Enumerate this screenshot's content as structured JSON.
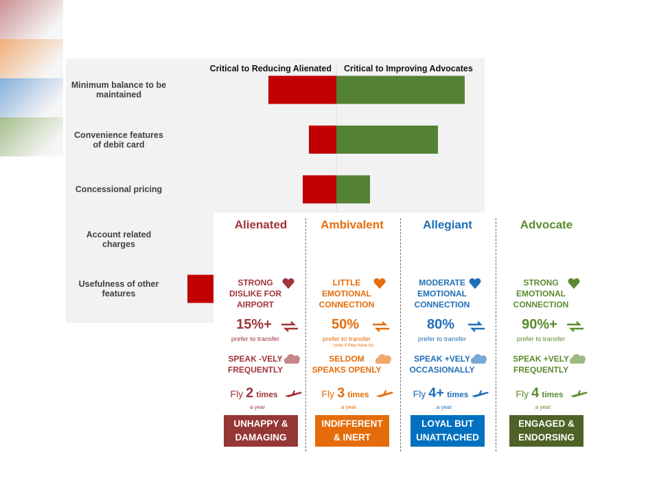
{
  "chart_data": {
    "type": "diverging-bar",
    "header_left": "Critical to Reducing Alienated",
    "header_right": "Critical to Improving Advocates",
    "categories": [
      "Minimum balance to be maintained",
      "Convenience features of debit card",
      "Concessional pricing",
      "Account related charges",
      "Usefulness of other features"
    ],
    "series": [
      {
        "color": "#c00000",
        "values": [
          -99,
          -40,
          -49,
          null,
          -217
        ]
      },
      {
        "color": "#548235",
        "values": [
          187,
          148,
          49,
          null,
          null
        ]
      }
    ],
    "xlim": [
      -394,
      216
    ]
  },
  "infographic": {
    "segments": [
      {
        "title": "Alienated",
        "color": "#a0343a",
        "box": "#953735",
        "emotion": [
          "STRONG",
          "DISLIKE FOR",
          "AIRPORT"
        ],
        "percent": "15%+",
        "transfer": "prefer to transfer",
        "speak": [
          "SPEAK -VELY",
          "FREQUENTLY"
        ],
        "fly": [
          "Fly",
          "2",
          "times"
        ],
        "per": "a year",
        "verdict": [
          "UNHAPPY &",
          "DAMAGING"
        ]
      },
      {
        "title": "Ambivalent",
        "color": "#e46c0a",
        "box": "#e46c0a",
        "emotion": [
          "LITTLE",
          "EMOTIONAL",
          "CONNECTION"
        ],
        "percent": "50%",
        "transfer": "prefer to transfer",
        "note": "(only if they have to)",
        "speak": [
          "SELDOM",
          "SPEAKS OPENLY"
        ],
        "fly": [
          "Fly",
          "3",
          "times"
        ],
        "per": "a year",
        "verdict": [
          "INDIFFERENT",
          "& INERT"
        ]
      },
      {
        "title": "Allegiant",
        "color": "#1f6fb8",
        "box": "#0070c0",
        "emotion": [
          "MODERATE",
          "EMOTIONAL",
          "CONNECTION"
        ],
        "percent": "80%",
        "transfer": "prefer to transfer",
        "speak": [
          "SPEAK +VELY",
          "OCCASIONALLY"
        ],
        "fly": [
          "Fly",
          "4+",
          "times"
        ],
        "per": "a year",
        "verdict": [
          "LOYAL BUT",
          "UNATTACHED"
        ]
      },
      {
        "title": "Advocate",
        "color": "#5b8a2e",
        "box": "#4f6228",
        "emotion": [
          "STRONG",
          "EMOTIONAL",
          "CONNECTION"
        ],
        "percent": "90%+",
        "transfer": "prefer to transfer",
        "speak": [
          "SPEAK +VELY",
          "FREQUENTLY"
        ],
        "fly": [
          "Fly",
          "4",
          "times"
        ],
        "per": "a year",
        "verdict": [
          "ENGAGED &",
          "ENDORSING"
        ]
      }
    ]
  }
}
